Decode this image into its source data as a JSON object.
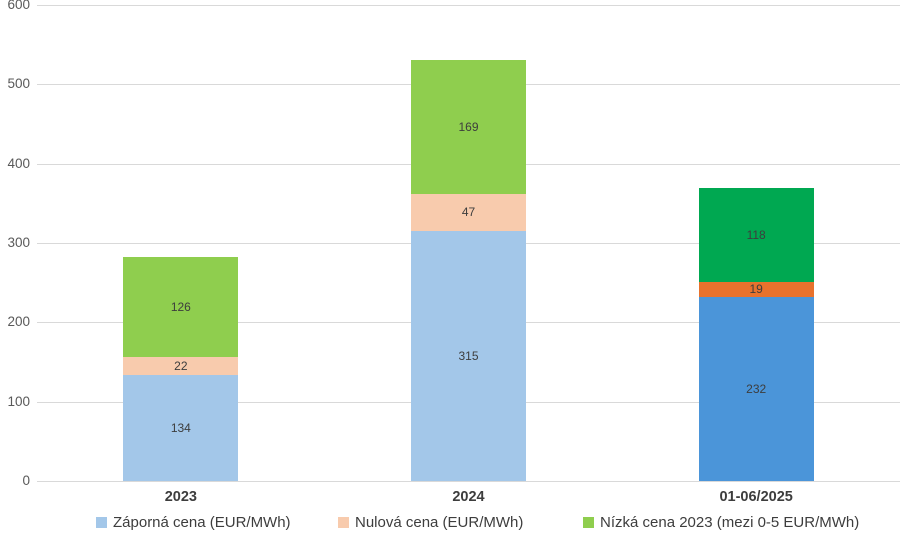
{
  "chart_data": {
    "type": "bar",
    "stacked": true,
    "title": "",
    "categories": [
      "2023",
      "2024",
      "01-06/2025"
    ],
    "series": [
      {
        "name": "Záporná cena (EUR/MWh)",
        "values": [
          134,
          315,
          232
        ],
        "colors": [
          "#a3c7e9",
          "#a3c7e9",
          "#4b95d9"
        ],
        "legend_color": "#a3c7e9"
      },
      {
        "name": "Nulová cena (EUR/MWh)",
        "values": [
          22,
          47,
          19
        ],
        "colors": [
          "#f8cbad",
          "#f8cbad",
          "#e8722d"
        ],
        "legend_color": "#f8cbad"
      },
      {
        "name": "Nízká cena 2023 (mezi 0-5 EUR/MWh)",
        "values": [
          126,
          169,
          118
        ],
        "colors": [
          "#8fce4e",
          "#8fce4e",
          "#00a851"
        ],
        "legend_color": "#8fce4e"
      }
    ],
    "ylim": [
      0,
      600
    ],
    "yticks": [
      0,
      100,
      200,
      300,
      400,
      500,
      600
    ],
    "grid": true,
    "xlabel": "",
    "ylabel": "",
    "legend_position": "bottom",
    "style_colors": {
      "gridline": "#d9d9d9",
      "y_tick_text": "#595959",
      "x_tick_text": "#3d3d3d",
      "value_label_text": "#3d3d3d",
      "legend_text": "#3d3d3d",
      "background": "#ffffff"
    }
  }
}
